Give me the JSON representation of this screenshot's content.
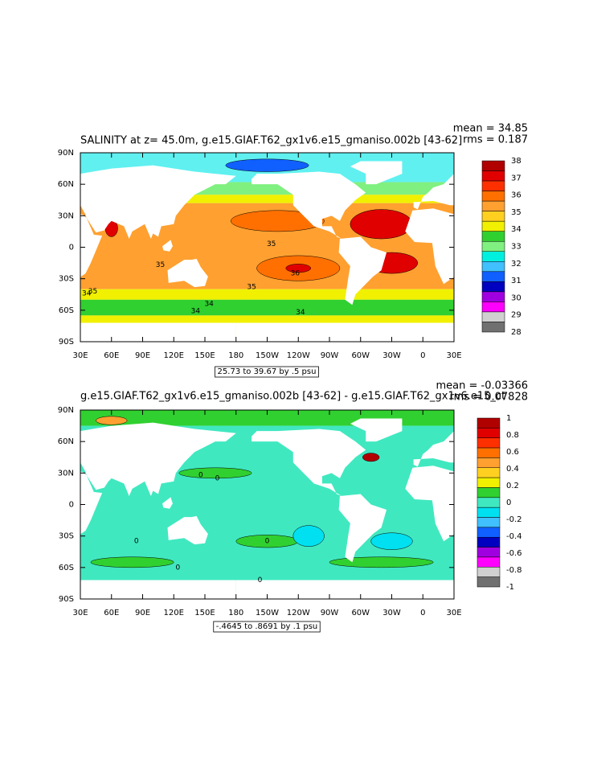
{
  "panels": [
    {
      "title": "SALINITY at z=  45.0m, g.e15.GIAF.T62_gx1v6.e15_gmaniso.002b [43-62]",
      "mean": "mean = 34.85",
      "rms": "rms = 0.187",
      "lat_labels": [
        "90N",
        "60N",
        "30N",
        "0",
        "30S",
        "60S",
        "90S"
      ],
      "lon_labels": [
        "30E",
        "60E",
        "90E",
        "120E",
        "150E",
        "180",
        "150W",
        "120W",
        "90W",
        "60W",
        "30W",
        "0",
        "30E"
      ],
      "colorbar": {
        "labels": [
          38,
          37,
          36,
          35,
          34,
          33,
          32,
          31,
          30,
          29,
          28
        ],
        "colors": [
          "#b00000",
          "#e00000",
          "#ff3000",
          "#ff7000",
          "#ffa030",
          "#ffd020",
          "#f0f000",
          "#30d030",
          "#80f080",
          "#00f0e0",
          "#40c0ff",
          "#1060ff",
          "#0000c0",
          "#a000e0",
          "#ff00ff",
          "#d0d0d0",
          "#707070"
        ]
      },
      "contour_info": "25.73 to 39.67 by .5 psu",
      "contour_labels": [
        35,
        35,
        36,
        35,
        35,
        34,
        34,
        34,
        34
      ]
    },
    {
      "title": "g.e15.GIAF.T62_gx1v6.e15_gmaniso.002b [43-62] - g.e15.GIAF.T62_gx1v6.e15_ct",
      "mean": "mean = -0.03366",
      "rms": "rms = 0.07828",
      "lat_labels": [
        "90N",
        "60N",
        "30N",
        "0",
        "30S",
        "60S",
        "90S"
      ],
      "lon_labels": [
        "30E",
        "60E",
        "90E",
        "120E",
        "150E",
        "180",
        "150W",
        "120W",
        "90W",
        "60W",
        "30W",
        "0",
        "30E"
      ],
      "colorbar": {
        "labels": [
          1,
          0.8,
          0.6,
          0.4,
          0.2,
          0,
          -0.2,
          -0.4,
          -0.6,
          -0.8,
          -1
        ],
        "colors": [
          "#b00000",
          "#e00000",
          "#ff3000",
          "#ff7000",
          "#ffa030",
          "#ffd020",
          "#f0f000",
          "#30d030",
          "#40e8c0",
          "#00e0f0",
          "#40c0ff",
          "#1060ff",
          "#0000c0",
          "#a000e0",
          "#ff00ff",
          "#d0d0d0",
          "#707070"
        ]
      },
      "contour_info": "-.4645 to .8691 by .1 psu",
      "contour_labels": [
        0,
        0,
        0,
        0,
        0,
        0
      ]
    }
  ]
}
